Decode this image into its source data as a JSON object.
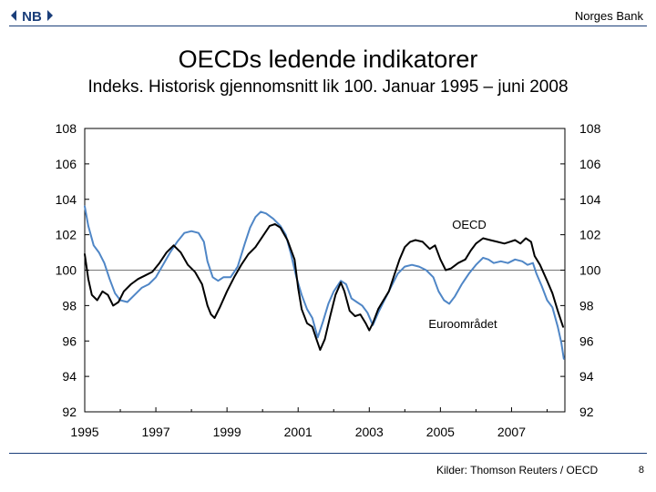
{
  "header": {
    "bank_name": "Norges Bank",
    "logo_text": "NB"
  },
  "title": "OECDs ledende indikatorer",
  "subtitle": "Indeks. Historisk gjennomsnitt lik 100. Januar 1995 – juni 2008",
  "footer": {
    "source": "Kilder: Thomson Reuters / OECD",
    "page_number": "8"
  },
  "colors": {
    "oecd": "#000000",
    "euro": "#4f86c6",
    "reference": "#777777",
    "brand": "#1b3f7a"
  },
  "chart_data": {
    "type": "line",
    "title": "OECDs ledende indikatorer",
    "xlabel": "",
    "ylabel": "",
    "xlim": [
      1995.0,
      2008.5
    ],
    "ylim": [
      92,
      108
    ],
    "x_ticks": [
      "1995",
      "1997",
      "1999",
      "2001",
      "2003",
      "2005",
      "2007"
    ],
    "x_tick_values": [
      1995,
      1997,
      1999,
      2001,
      2003,
      2005,
      2007
    ],
    "y_ticks": [
      92,
      94,
      96,
      98,
      100,
      102,
      104,
      106,
      108
    ],
    "reference_line": 100,
    "series": [
      {
        "name": "OECD",
        "label": "OECD",
        "color": "#000000",
        "points": [
          [
            1995.0,
            100.9
          ],
          [
            1995.1,
            99.5
          ],
          [
            1995.2,
            98.6
          ],
          [
            1995.35,
            98.3
          ],
          [
            1995.5,
            98.8
          ],
          [
            1995.65,
            98.6
          ],
          [
            1995.8,
            98.0
          ],
          [
            1995.95,
            98.2
          ],
          [
            1996.1,
            98.8
          ],
          [
            1996.3,
            99.2
          ],
          [
            1996.5,
            99.5
          ],
          [
            1996.7,
            99.7
          ],
          [
            1996.9,
            99.9
          ],
          [
            1997.1,
            100.4
          ],
          [
            1997.3,
            101.0
          ],
          [
            1997.5,
            101.4
          ],
          [
            1997.7,
            101.0
          ],
          [
            1997.9,
            100.3
          ],
          [
            1998.1,
            99.9
          ],
          [
            1998.3,
            99.2
          ],
          [
            1998.45,
            98.0
          ],
          [
            1998.55,
            97.5
          ],
          [
            1998.65,
            97.3
          ],
          [
            1998.8,
            97.9
          ],
          [
            1999.0,
            98.8
          ],
          [
            1999.2,
            99.6
          ],
          [
            1999.4,
            100.3
          ],
          [
            1999.6,
            100.9
          ],
          [
            1999.8,
            101.3
          ],
          [
            2000.0,
            101.9
          ],
          [
            2000.2,
            102.5
          ],
          [
            2000.35,
            102.6
          ],
          [
            2000.5,
            102.4
          ],
          [
            2000.7,
            101.7
          ],
          [
            2000.9,
            100.6
          ],
          [
            2001.0,
            99.0
          ],
          [
            2001.1,
            97.8
          ],
          [
            2001.25,
            97.0
          ],
          [
            2001.4,
            96.8
          ],
          [
            2001.5,
            96.2
          ],
          [
            2001.62,
            95.5
          ],
          [
            2001.75,
            96.1
          ],
          [
            2001.9,
            97.4
          ],
          [
            2002.05,
            98.6
          ],
          [
            2002.2,
            99.3
          ],
          [
            2002.3,
            98.8
          ],
          [
            2002.45,
            97.7
          ],
          [
            2002.6,
            97.4
          ],
          [
            2002.75,
            97.5
          ],
          [
            2002.9,
            97.0
          ],
          [
            2003.0,
            96.6
          ],
          [
            2003.1,
            97.0
          ],
          [
            2003.25,
            97.8
          ],
          [
            2003.4,
            98.3
          ],
          [
            2003.55,
            98.8
          ],
          [
            2003.7,
            99.7
          ],
          [
            2003.85,
            100.6
          ],
          [
            2004.0,
            101.3
          ],
          [
            2004.15,
            101.6
          ],
          [
            2004.3,
            101.7
          ],
          [
            2004.5,
            101.6
          ],
          [
            2004.7,
            101.2
          ],
          [
            2004.85,
            101.4
          ],
          [
            2005.0,
            100.6
          ],
          [
            2005.15,
            100.0
          ],
          [
            2005.3,
            100.1
          ],
          [
            2005.5,
            100.4
          ],
          [
            2005.7,
            100.6
          ],
          [
            2005.85,
            101.1
          ],
          [
            2006.0,
            101.5
          ],
          [
            2006.2,
            101.8
          ],
          [
            2006.4,
            101.7
          ],
          [
            2006.6,
            101.6
          ],
          [
            2006.8,
            101.5
          ],
          [
            2006.95,
            101.6
          ],
          [
            2007.1,
            101.7
          ],
          [
            2007.25,
            101.5
          ],
          [
            2007.4,
            101.8
          ],
          [
            2007.55,
            101.6
          ],
          [
            2007.65,
            100.8
          ],
          [
            2007.8,
            100.3
          ],
          [
            2008.0,
            99.4
          ],
          [
            2008.15,
            98.7
          ],
          [
            2008.3,
            97.7
          ],
          [
            2008.45,
            96.8
          ]
        ]
      },
      {
        "name": "Euroområdet",
        "label": "Euroområdet",
        "color": "#4f86c6",
        "points": [
          [
            1995.0,
            103.6
          ],
          [
            1995.1,
            102.5
          ],
          [
            1995.25,
            101.4
          ],
          [
            1995.4,
            101.0
          ],
          [
            1995.55,
            100.4
          ],
          [
            1995.7,
            99.5
          ],
          [
            1995.85,
            98.7
          ],
          [
            1996.0,
            98.3
          ],
          [
            1996.2,
            98.2
          ],
          [
            1996.4,
            98.6
          ],
          [
            1996.6,
            99.0
          ],
          [
            1996.8,
            99.2
          ],
          [
            1997.0,
            99.6
          ],
          [
            1997.2,
            100.3
          ],
          [
            1997.4,
            101.0
          ],
          [
            1997.6,
            101.6
          ],
          [
            1997.8,
            102.1
          ],
          [
            1998.0,
            102.2
          ],
          [
            1998.2,
            102.1
          ],
          [
            1998.35,
            101.6
          ],
          [
            1998.45,
            100.5
          ],
          [
            1998.6,
            99.6
          ],
          [
            1998.75,
            99.4
          ],
          [
            1998.9,
            99.6
          ],
          [
            1999.1,
            99.6
          ],
          [
            1999.3,
            100.2
          ],
          [
            1999.5,
            101.5
          ],
          [
            1999.65,
            102.4
          ],
          [
            1999.8,
            103.0
          ],
          [
            1999.95,
            103.3
          ],
          [
            2000.1,
            103.2
          ],
          [
            2000.3,
            102.9
          ],
          [
            2000.5,
            102.5
          ],
          [
            2000.65,
            102.0
          ],
          [
            2000.8,
            100.9
          ],
          [
            2000.95,
            99.6
          ],
          [
            2001.1,
            98.6
          ],
          [
            2001.25,
            97.8
          ],
          [
            2001.4,
            97.3
          ],
          [
            2001.55,
            96.2
          ],
          [
            2001.7,
            97.1
          ],
          [
            2001.85,
            98.1
          ],
          [
            2002.0,
            98.8
          ],
          [
            2002.2,
            99.4
          ],
          [
            2002.35,
            99.2
          ],
          [
            2002.5,
            98.4
          ],
          [
            2002.65,
            98.2
          ],
          [
            2002.8,
            98.0
          ],
          [
            2002.95,
            97.6
          ],
          [
            2003.1,
            96.9
          ],
          [
            2003.25,
            97.6
          ],
          [
            2003.4,
            98.2
          ],
          [
            2003.6,
            99.0
          ],
          [
            2003.8,
            99.8
          ],
          [
            2004.0,
            100.2
          ],
          [
            2004.2,
            100.3
          ],
          [
            2004.4,
            100.2
          ],
          [
            2004.6,
            100.0
          ],
          [
            2004.8,
            99.6
          ],
          [
            2004.95,
            98.8
          ],
          [
            2005.1,
            98.3
          ],
          [
            2005.25,
            98.1
          ],
          [
            2005.4,
            98.5
          ],
          [
            2005.6,
            99.2
          ],
          [
            2005.8,
            99.8
          ],
          [
            2006.0,
            100.3
          ],
          [
            2006.2,
            100.7
          ],
          [
            2006.35,
            100.6
          ],
          [
            2006.5,
            100.4
          ],
          [
            2006.7,
            100.5
          ],
          [
            2006.9,
            100.4
          ],
          [
            2007.1,
            100.6
          ],
          [
            2007.3,
            100.5
          ],
          [
            2007.45,
            100.3
          ],
          [
            2007.6,
            100.4
          ],
          [
            2007.7,
            99.8
          ],
          [
            2007.85,
            99.1
          ],
          [
            2008.0,
            98.3
          ],
          [
            2008.15,
            97.9
          ],
          [
            2008.3,
            96.8
          ],
          [
            2008.4,
            95.9
          ],
          [
            2008.47,
            95.0
          ]
        ]
      }
    ]
  }
}
